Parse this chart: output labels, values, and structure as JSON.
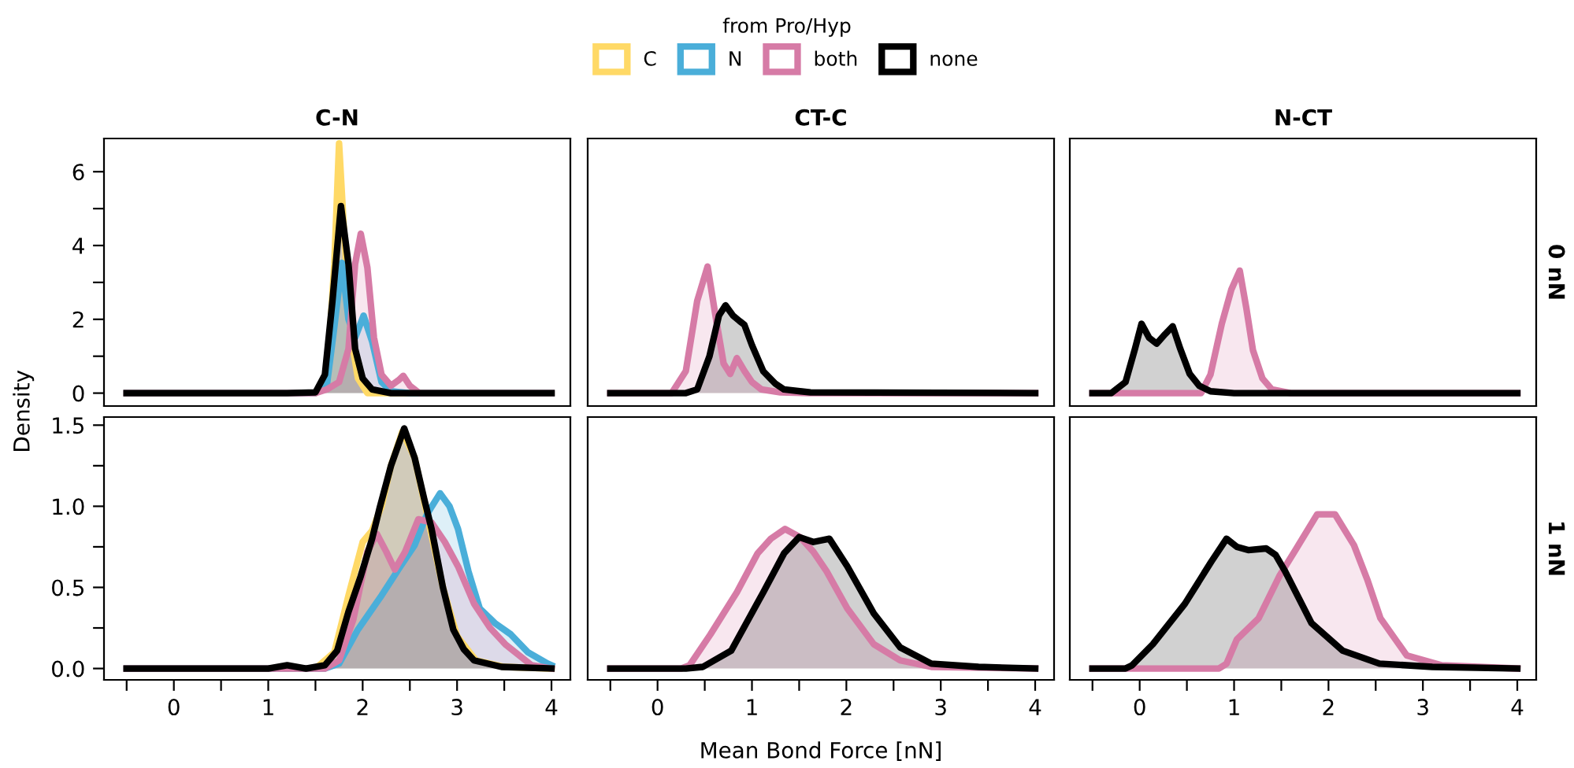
{
  "chart_data": [
    {
      "type": "area",
      "title": "C-N",
      "ylabel": "Density",
      "legend": "top",
      "legend_title": "from Pro/Hyp",
      "tick_labels": "y",
      "xlim": [
        -0.74,
        4.2
      ],
      "ylim": [
        -0.35,
        6.9
      ],
      "yticks": [
        0,
        {
          "value": 1,
          "label": null
        },
        2,
        {
          "value": 3,
          "label": null
        },
        4,
        {
          "value": 5,
          "label": null
        },
        6
      ],
      "series": [
        {
          "name": "C",
          "color": "#ffd966",
          "x": [
            -0.5,
            1.5,
            1.62,
            1.7,
            1.75,
            1.8,
            1.88,
            1.95,
            2.05,
            4.0
          ],
          "values": [
            0,
            0,
            0.3,
            3.5,
            6.77,
            4.5,
            1.5,
            0.4,
            0,
            0
          ]
        },
        {
          "name": "N",
          "color": "#4aaed9",
          "x": [
            -0.5,
            1.5,
            1.62,
            1.7,
            1.78,
            1.85,
            1.92,
            2.01,
            2.1,
            2.2,
            2.3,
            2.5,
            4.0
          ],
          "values": [
            0,
            0,
            0.2,
            1.8,
            3.53,
            2.0,
            1.5,
            2.1,
            1.4,
            0.3,
            0.05,
            0,
            0
          ]
        },
        {
          "name": "both",
          "color": "#d67ba6",
          "x": [
            -0.5,
            1.5,
            1.62,
            1.75,
            1.85,
            1.92,
            1.98,
            2.05,
            2.12,
            2.2,
            2.3,
            2.38,
            2.43,
            2.5,
            2.6,
            4.0
          ],
          "values": [
            0,
            0,
            0.1,
            0.3,
            1.2,
            3.5,
            4.32,
            3.4,
            1.5,
            0.5,
            0.2,
            0.35,
            0.47,
            0.2,
            0,
            0
          ]
        },
        {
          "name": "none",
          "color": "#000000",
          "x": [
            -0.5,
            1.2,
            1.5,
            1.6,
            1.68,
            1.77,
            1.85,
            1.92,
            2.0,
            2.1,
            2.3,
            4.0
          ],
          "values": [
            0,
            0,
            0.02,
            0.5,
            2.5,
            5.07,
            3.5,
            1.2,
            0.4,
            0.1,
            0,
            0
          ]
        }
      ]
    },
    {
      "type": "area",
      "title": "CT-C",
      "tick_labels": false,
      "xlim": [
        -0.74,
        4.2
      ],
      "ylim": [
        -0.35,
        6.9
      ],
      "series": [
        {
          "color": "#d67ba6",
          "x": [
            -0.5,
            0.15,
            0.3,
            0.42,
            0.53,
            0.62,
            0.7,
            0.77,
            0.84,
            0.92,
            1.0,
            1.1,
            1.3,
            1.6,
            4.0
          ],
          "values": [
            0,
            0,
            0.6,
            2.5,
            3.43,
            2.0,
            0.8,
            0.52,
            0.95,
            0.6,
            0.3,
            0.1,
            0.02,
            0,
            0
          ]
        },
        {
          "color": "#000000",
          "x": [
            -0.5,
            0.3,
            0.42,
            0.55,
            0.65,
            0.72,
            0.8,
            0.87,
            0.92,
            1.0,
            1.12,
            1.25,
            1.34,
            1.62,
            4.0
          ],
          "values": [
            0,
            0,
            0.1,
            1.0,
            2.1,
            2.38,
            2.1,
            1.95,
            1.85,
            1.3,
            0.59,
            0.25,
            0.1,
            0.02,
            0
          ]
        }
      ]
    },
    {
      "type": "area",
      "title": "N-CT",
      "annotations": [
        "0 nN"
      ],
      "tick_labels": false,
      "xlim": [
        -0.74,
        4.2
      ],
      "ylim": [
        -0.35,
        6.9
      ],
      "series": [
        {
          "color": "#d67ba6",
          "x": [
            -0.5,
            0.65,
            0.75,
            0.87,
            0.97,
            1.06,
            1.13,
            1.2,
            1.3,
            1.4,
            1.6,
            4.0
          ],
          "values": [
            0,
            0,
            0.5,
            1.88,
            2.8,
            3.32,
            2.3,
            1.16,
            0.4,
            0.1,
            0,
            0
          ]
        },
        {
          "color": "#000000",
          "x": [
            -0.5,
            -0.3,
            -0.15,
            -0.05,
            0.02,
            0.1,
            0.18,
            0.27,
            0.35,
            0.43,
            0.53,
            0.63,
            0.75,
            1.0,
            4.0
          ],
          "values": [
            0,
            0,
            0.3,
            1.2,
            1.88,
            1.5,
            1.34,
            1.6,
            1.81,
            1.2,
            0.52,
            0.2,
            0.05,
            0,
            0
          ]
        }
      ]
    },
    {
      "type": "area",
      "xlim": [
        -0.74,
        4.2
      ],
      "ylim": [
        -0.07,
        1.55
      ],
      "xticks": [
        {
          "value": -0.5,
          "label": null
        },
        0,
        {
          "value": 0.5,
          "label": null
        },
        1,
        {
          "value": 1.5,
          "label": null
        },
        2,
        {
          "value": 2.5,
          "label": null
        },
        3,
        {
          "value": 3.5,
          "label": null
        },
        4
      ],
      "yticks": [
        {
          "value": 0,
          "label": "0.0"
        },
        {
          "value": 0.25,
          "label": null
        },
        {
          "value": 0.5,
          "label": "0.5"
        },
        {
          "value": 0.75,
          "label": null
        },
        {
          "value": 1,
          "label": "1.0"
        },
        {
          "value": 1.25,
          "label": null
        },
        {
          "value": 1.5,
          "label": "1.5"
        }
      ],
      "series": [
        {
          "color": "#ffd966",
          "x": [
            -0.5,
            1.5,
            1.7,
            1.85,
            2.0,
            2.1,
            2.2,
            2.3,
            2.42,
            2.55,
            2.7,
            2.85,
            3.0,
            3.2,
            3.5,
            4.0
          ],
          "values": [
            0,
            0,
            0.1,
            0.45,
            0.78,
            0.85,
            1.0,
            1.25,
            1.46,
            1.3,
            0.9,
            0.5,
            0.2,
            0.05,
            0.01,
            0
          ]
        },
        {
          "color": "#4aaed9",
          "x": [
            -0.5,
            1.6,
            1.75,
            1.95,
            2.2,
            2.4,
            2.55,
            2.68,
            2.82,
            2.92,
            3.01,
            3.12,
            3.24,
            3.4,
            3.57,
            3.75,
            3.96,
            4.0
          ],
          "values": [
            0,
            0,
            0.03,
            0.24,
            0.45,
            0.63,
            0.76,
            0.95,
            1.08,
            1.0,
            0.86,
            0.6,
            0.37,
            0.28,
            0.21,
            0.1,
            0.03,
            0.02
          ]
        },
        {
          "color": "#d67ba6",
          "x": [
            -0.5,
            1.6,
            1.75,
            1.9,
            2.05,
            2.15,
            2.25,
            2.34,
            2.45,
            2.59,
            2.73,
            2.87,
            3.01,
            3.18,
            3.35,
            3.51,
            3.79,
            4.0
          ],
          "values": [
            0,
            0,
            0.05,
            0.3,
            0.72,
            0.83,
            0.72,
            0.61,
            0.72,
            0.92,
            0.9,
            0.78,
            0.63,
            0.4,
            0.25,
            0.15,
            0.02,
            0
          ]
        },
        {
          "color": "#000000",
          "x": [
            -0.5,
            1.0,
            1.2,
            1.4,
            1.6,
            1.73,
            1.85,
            1.98,
            2.1,
            2.18,
            2.3,
            2.44,
            2.55,
            2.65,
            2.73,
            2.85,
            2.96,
            3.07,
            3.18,
            3.47,
            4.0
          ],
          "values": [
            0,
            0,
            0.02,
            0,
            0.02,
            0.11,
            0.35,
            0.57,
            0.8,
            0.99,
            1.25,
            1.48,
            1.3,
            1.05,
            0.86,
            0.5,
            0.24,
            0.12,
            0.05,
            0.01,
            0
          ]
        }
      ]
    },
    {
      "type": "area",
      "xlabel": "Mean Bond Force [nN]",
      "tick_labels": "x",
      "xlim": [
        -0.74,
        4.2
      ],
      "ylim": [
        -0.07,
        1.55
      ],
      "xticks": [
        {
          "value": -0.5,
          "label": null
        },
        0,
        {
          "value": 0.5,
          "label": null
        },
        1,
        {
          "value": 1.5,
          "label": null
        },
        2,
        {
          "value": 2.5,
          "label": null
        },
        3,
        {
          "value": 3.5,
          "label": null
        },
        4
      ],
      "series": [
        {
          "color": "#d67ba6",
          "x": [
            -0.5,
            0.25,
            0.34,
            0.56,
            0.84,
            1.06,
            1.2,
            1.35,
            1.51,
            1.65,
            1.79,
            2.01,
            2.29,
            2.57,
            2.9,
            4.0
          ],
          "values": [
            0,
            0,
            0.02,
            0.21,
            0.47,
            0.71,
            0.8,
            0.86,
            0.81,
            0.72,
            0.6,
            0.37,
            0.15,
            0.05,
            0.01,
            0
          ]
        },
        {
          "color": "#000000",
          "x": [
            -0.5,
            0.3,
            0.48,
            0.78,
            1.12,
            1.34,
            1.5,
            1.65,
            1.82,
            2.01,
            2.29,
            2.57,
            2.9,
            3.4,
            4.0
          ],
          "values": [
            0,
            0,
            0.01,
            0.11,
            0.47,
            0.71,
            0.81,
            0.78,
            0.8,
            0.63,
            0.34,
            0.13,
            0.03,
            0.01,
            0
          ]
        }
      ]
    },
    {
      "type": "area",
      "annotations": [
        "1 nN"
      ],
      "tick_labels": "x",
      "xlim": [
        -0.74,
        4.2
      ],
      "ylim": [
        -0.07,
        1.55
      ],
      "xticks": [
        {
          "value": -0.5,
          "label": null
        },
        0,
        {
          "value": 0.5,
          "label": null
        },
        1,
        {
          "value": 1.5,
          "label": null
        },
        2,
        {
          "value": 2.5,
          "label": null
        },
        3,
        {
          "value": 3.5,
          "label": null
        },
        4
      ],
      "series": [
        {
          "color": "#d67ba6",
          "x": [
            -0.5,
            0.84,
            0.92,
            1.03,
            1.26,
            1.48,
            1.65,
            1.88,
            2.07,
            2.27,
            2.41,
            2.55,
            2.83,
            3.2,
            4.0
          ],
          "values": [
            0,
            0,
            0.03,
            0.18,
            0.31,
            0.57,
            0.73,
            0.95,
            0.95,
            0.76,
            0.55,
            0.31,
            0.08,
            0.02,
            0
          ]
        },
        {
          "color": "#000000",
          "x": [
            -0.5,
            -0.15,
            -0.08,
            0.14,
            0.48,
            0.76,
            0.92,
            1.03,
            1.15,
            1.34,
            1.44,
            1.54,
            1.82,
            2.15,
            2.54,
            3.1,
            4.0
          ],
          "values": [
            0,
            0,
            0.02,
            0.15,
            0.4,
            0.66,
            0.8,
            0.75,
            0.73,
            0.74,
            0.7,
            0.6,
            0.28,
            0.11,
            0.03,
            0.01,
            0
          ]
        }
      ]
    }
  ]
}
